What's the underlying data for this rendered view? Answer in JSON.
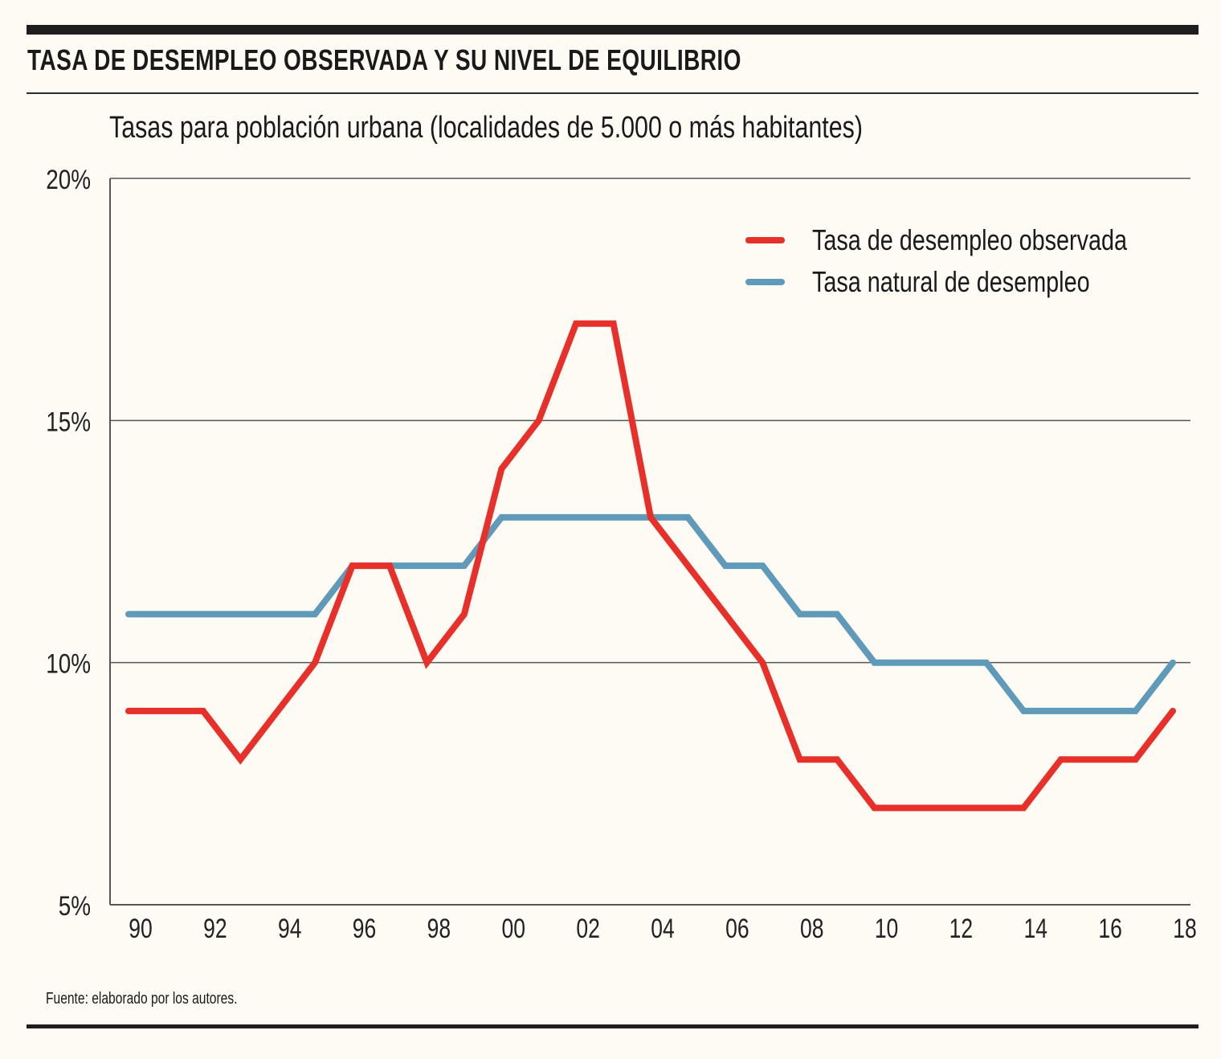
{
  "header": {
    "title": "TASA DE DESEMPLEO OBSERVADA Y SU NIVEL DE EQUILIBRIO",
    "subtitle": "Tasas para población urbana (localidades de 5.000 o más habitantes)"
  },
  "footer": {
    "source": "Fuente: elaborado por los autores."
  },
  "colors": {
    "observed": "#e8302b",
    "natural": "#5f9ab8",
    "axis": "#555555",
    "background": "#fefbf4"
  },
  "chart_data": {
    "type": "line",
    "title": "TASA DE DESEMPLEO OBSERVADA Y SU NIVEL DE EQUILIBRIO",
    "subtitle": "Tasas para población urbana (localidades de 5.000 o más habitantes)",
    "xlabel": "",
    "ylabel": "",
    "x": [
      1990,
      1991,
      1992,
      1993,
      1994,
      1995,
      1996,
      1997,
      1998,
      1999,
      2000,
      2001,
      2002,
      2003,
      2004,
      2005,
      2006,
      2007,
      2008,
      2009,
      2010,
      2011,
      2012,
      2013,
      2014,
      2015,
      2016,
      2017,
      2018
    ],
    "xlim": [
      1990,
      2018
    ],
    "ylim": [
      5,
      20
    ],
    "x_ticks": [
      {
        "value": 1990,
        "label": "90"
      },
      {
        "value": 1992,
        "label": "92"
      },
      {
        "value": 1994,
        "label": "94"
      },
      {
        "value": 1996,
        "label": "96"
      },
      {
        "value": 1998,
        "label": "98"
      },
      {
        "value": 2000,
        "label": "00"
      },
      {
        "value": 2002,
        "label": "02"
      },
      {
        "value": 2004,
        "label": "04"
      },
      {
        "value": 2006,
        "label": "06"
      },
      {
        "value": 2008,
        "label": "08"
      },
      {
        "value": 2010,
        "label": "10"
      },
      {
        "value": 2012,
        "label": "12"
      },
      {
        "value": 2014,
        "label": "14"
      },
      {
        "value": 2016,
        "label": "16"
      },
      {
        "value": 2018,
        "label": "18"
      }
    ],
    "y_ticks": [
      {
        "value": 20,
        "label": "20%"
      },
      {
        "value": 15,
        "label": "15%"
      },
      {
        "value": 10,
        "label": "10%"
      },
      {
        "value": 5,
        "label": "5%"
      }
    ],
    "grid": "horizontal",
    "legend_position": "top-right",
    "series": [
      {
        "name": "Tasa de desempleo observada",
        "color": "#e8302b",
        "values": [
          9,
          9,
          9,
          8,
          9,
          10,
          12,
          12,
          10,
          11,
          14,
          15,
          17,
          17,
          13,
          12,
          11,
          10,
          8,
          8,
          7,
          7,
          7,
          7,
          7,
          8,
          8,
          8,
          9
        ]
      },
      {
        "name": "Tasa natural de desempleo",
        "color": "#5f9ab8",
        "values": [
          11,
          11,
          11,
          11,
          11,
          11,
          12,
          12,
          12,
          12,
          13,
          13,
          13,
          13,
          13,
          13,
          12,
          12,
          11,
          11,
          10,
          10,
          10,
          10,
          9,
          9,
          9,
          9,
          10
        ]
      }
    ]
  }
}
